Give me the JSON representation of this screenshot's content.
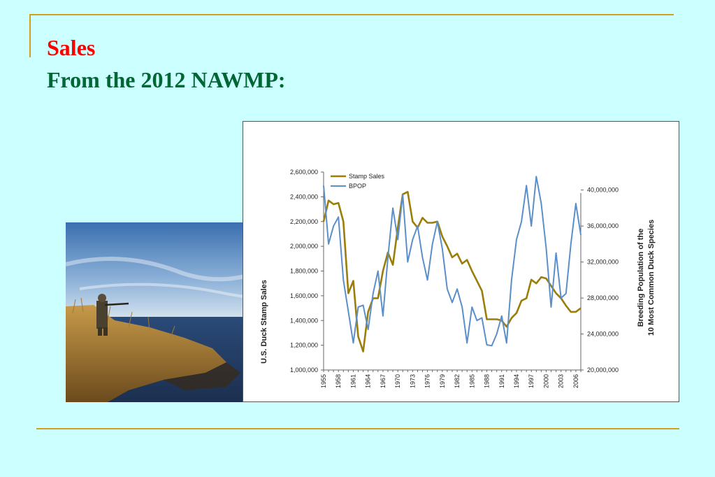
{
  "slide": {
    "title_line1": "Sales",
    "title_line2": "From the 2012 NAWMP:",
    "title_line1_color": "#ff0000",
    "title_line2_color": "#006633",
    "rule_color": "#d4a017",
    "background": "#ccffff"
  },
  "photo": {
    "description_icon": "duck-hunter-photo"
  },
  "chart_data": {
    "type": "line",
    "title": "",
    "x": [
      1955,
      1956,
      1957,
      1958,
      1959,
      1960,
      1961,
      1962,
      1963,
      1964,
      1965,
      1966,
      1967,
      1968,
      1969,
      1970,
      1971,
      1972,
      1973,
      1974,
      1975,
      1976,
      1977,
      1978,
      1979,
      1980,
      1981,
      1982,
      1983,
      1984,
      1985,
      1986,
      1987,
      1988,
      1989,
      1990,
      1991,
      1992,
      1993,
      1994,
      1995,
      1996,
      1997,
      1998,
      1999,
      2000,
      2001,
      2002,
      2003,
      2004,
      2005,
      2006,
      2007
    ],
    "x_tick_labels": [
      "1955",
      "1958",
      "1961",
      "1964",
      "1967",
      "1970",
      "1973",
      "1976",
      "1979",
      "1982",
      "1985",
      "1988",
      "1991",
      "1994",
      "1997",
      "2000",
      "2003",
      "2006"
    ],
    "xlim": [
      1955,
      2007
    ],
    "ylabel": "U.S. Duck Stamp Sales",
    "ylim": [
      1000000,
      2600000
    ],
    "y_tick_labels": [
      "1,000,000",
      "1,200,000",
      "1,400,000",
      "1,600,000",
      "1,800,000",
      "2,000,000",
      "2,200,000",
      "2,400,000",
      "2,600,000"
    ],
    "y_ticks": [
      1000000,
      1200000,
      1400000,
      1600000,
      1800000,
      2000000,
      2200000,
      2400000,
      2600000
    ],
    "y2label_line1": "Breeding Population of the",
    "y2label_line2": "10 Most Common Duck Species",
    "y2lim": [
      20000000,
      42000000
    ],
    "y2_tick_labels": [
      "20,000,000",
      "24,000,000",
      "28,000,000",
      "32,000,000",
      "36,000,000",
      "40,000,000"
    ],
    "y2_ticks": [
      20000000,
      24000000,
      28000000,
      32000000,
      36000000,
      40000000
    ],
    "legend_position": "top-left",
    "grid": false,
    "series": [
      {
        "name": "Stamp Sales",
        "axis": "left",
        "color": "#9a7d0a",
        "values": [
          2200000,
          2370000,
          2340000,
          2350000,
          2200000,
          1620000,
          1720000,
          1270000,
          1150000,
          1470000,
          1580000,
          1580000,
          1800000,
          1950000,
          1850000,
          2150000,
          2420000,
          2440000,
          2200000,
          2150000,
          2230000,
          2190000,
          2190000,
          2200000,
          2080000,
          2000000,
          1910000,
          1940000,
          1860000,
          1890000,
          1800000,
          1720000,
          1640000,
          1410000,
          1410000,
          1410000,
          1400000,
          1350000,
          1420000,
          1460000,
          1560000,
          1580000,
          1730000,
          1700000,
          1750000,
          1740000,
          1680000,
          1620000,
          1580000,
          1520000,
          1470000,
          1470000,
          1500000
        ]
      },
      {
        "name": "BPOP",
        "axis": "right",
        "color": "#5b8fc9",
        "values": [
          40500000,
          34000000,
          36000000,
          37000000,
          30000000,
          26500000,
          23000000,
          27000000,
          27200000,
          24500000,
          28500000,
          31000000,
          26000000,
          32500000,
          38000000,
          34500000,
          39500000,
          32000000,
          34500000,
          36000000,
          32500000,
          30000000,
          34000000,
          36500000,
          33500000,
          29000000,
          27500000,
          29000000,
          27000000,
          23000000,
          27000000,
          25500000,
          25800000,
          22800000,
          22700000,
          24000000,
          26000000,
          23000000,
          30000000,
          34500000,
          36500000,
          40500000,
          36000000,
          41500000,
          38500000,
          33500000,
          27000000,
          33000000,
          28000000,
          28500000,
          34000000,
          38500000,
          35000000
        ]
      }
    ]
  }
}
